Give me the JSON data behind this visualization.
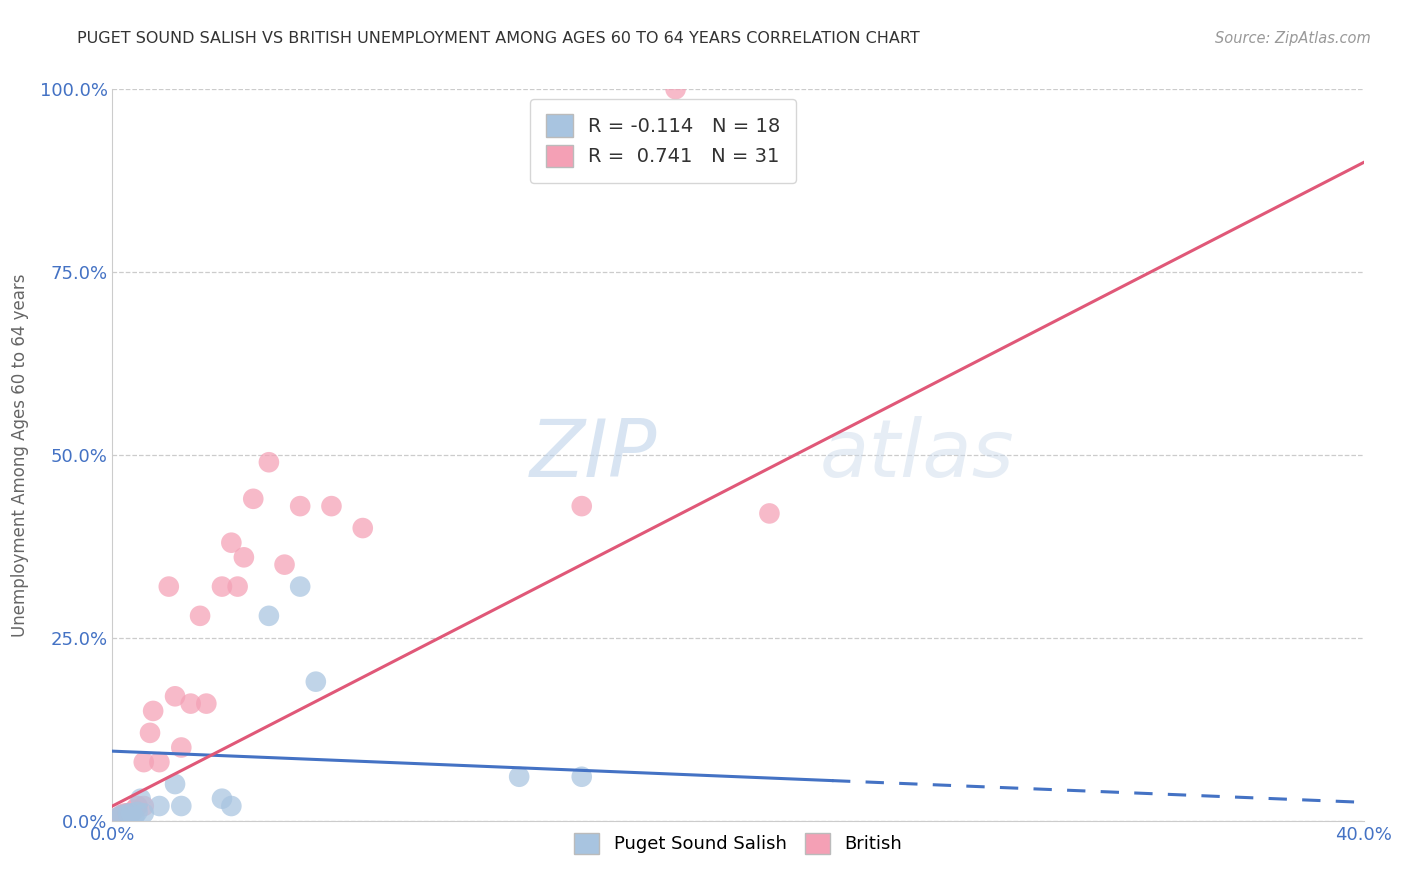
{
  "title": "PUGET SOUND SALISH VS BRITISH UNEMPLOYMENT AMONG AGES 60 TO 64 YEARS CORRELATION CHART",
  "source": "Source: ZipAtlas.com",
  "ylabel": "Unemployment Among Ages 60 to 64 years",
  "xlim": [
    0,
    0.4
  ],
  "ylim": [
    0,
    1.0
  ],
  "xtick_labels": [
    "0.0%",
    "40.0%"
  ],
  "ytick_labels": [
    "0.0%",
    "25.0%",
    "50.0%",
    "75.0%",
    "100.0%"
  ],
  "ytick_values": [
    0.0,
    0.25,
    0.5,
    0.75,
    1.0
  ],
  "xtick_values": [
    0.0,
    0.4
  ],
  "legend_label1": "Puget Sound Salish",
  "legend_label2": "British",
  "R1": -0.114,
  "N1": 18,
  "R2": 0.741,
  "N2": 31,
  "color1": "#a8c4e0",
  "color2": "#f4a0b5",
  "trendline1_color": "#4472c4",
  "trendline2_color": "#e05878",
  "background_color": "#ffffff",
  "grid_color": "#cccccc",
  "watermark_zip": "ZIP",
  "watermark_atlas": "atlas",
  "puget_x": [
    0.002,
    0.003,
    0.005,
    0.006,
    0.007,
    0.008,
    0.009,
    0.01,
    0.015,
    0.02,
    0.022,
    0.035,
    0.038,
    0.05,
    0.06,
    0.065,
    0.13,
    0.15
  ],
  "puget_y": [
    0.005,
    0.008,
    0.01,
    0.01,
    0.005,
    0.012,
    0.03,
    0.01,
    0.02,
    0.05,
    0.02,
    0.03,
    0.02,
    0.28,
    0.32,
    0.19,
    0.06,
    0.06
  ],
  "british_x": [
    0.002,
    0.003,
    0.004,
    0.005,
    0.006,
    0.007,
    0.008,
    0.01,
    0.01,
    0.012,
    0.013,
    0.015,
    0.018,
    0.02,
    0.022,
    0.025,
    0.028,
    0.03,
    0.035,
    0.038,
    0.04,
    0.042,
    0.045,
    0.05,
    0.055,
    0.06,
    0.07,
    0.08,
    0.15,
    0.21,
    0.18
  ],
  "british_y": [
    0.005,
    0.008,
    0.01,
    0.01,
    0.01,
    0.015,
    0.02,
    0.02,
    0.08,
    0.12,
    0.15,
    0.08,
    0.32,
    0.17,
    0.1,
    0.16,
    0.28,
    0.16,
    0.32,
    0.38,
    0.32,
    0.36,
    0.44,
    0.49,
    0.35,
    0.43,
    0.43,
    0.4,
    0.43,
    0.42,
    1.0
  ],
  "trendline1_x0": 0.0,
  "trendline1_y0": 0.095,
  "trendline1_x1": 0.4,
  "trendline1_y1": 0.025,
  "trendline1_solid_end": 0.23,
  "trendline2_x0": 0.0,
  "trendline2_y0": 0.02,
  "trendline2_x1": 0.4,
  "trendline2_y1": 0.9
}
